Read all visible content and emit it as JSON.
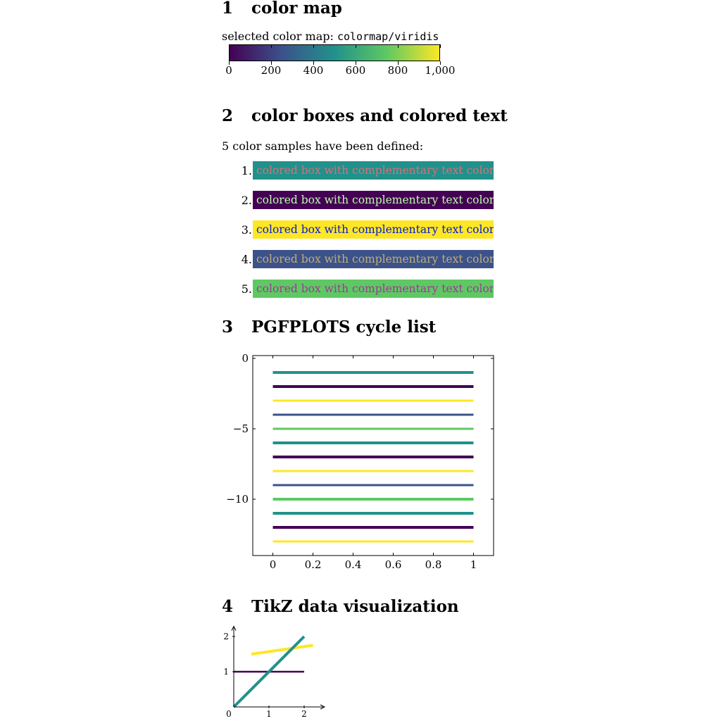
{
  "sections": [
    {
      "number": "1",
      "title": "color map"
    },
    {
      "number": "2",
      "title": "color boxes and colored text"
    },
    {
      "number": "3",
      "title": "PGFPLOTS cycle list"
    },
    {
      "number": "4",
      "title": "TikZ data visualization"
    }
  ],
  "colormap": {
    "label": "selected color map:",
    "name": "colormap/viridis",
    "gradient": [
      "#440154",
      "#3b528b",
      "#21918c",
      "#5ec962",
      "#fde725"
    ],
    "ticks": [
      "0",
      "200",
      "400",
      "600",
      "800",
      "1,000"
    ]
  },
  "samples": {
    "intro": "5 color samples have been defined:",
    "items": [
      {
        "num": "1.",
        "text": "colored box with complementary text color",
        "bg": "#21918c",
        "fg": "#de6e73"
      },
      {
        "num": "2.",
        "text": "colored box with complementary text color",
        "bg": "#440154",
        "fg": "#bbfeab"
      },
      {
        "num": "3.",
        "text": "colored box with complementary text color",
        "bg": "#fde725",
        "fg": "#0218da"
      },
      {
        "num": "4.",
        "text": "colored box with complementary text color",
        "bg": "#3b528b",
        "fg": "#c4ad74"
      },
      {
        "num": "5.",
        "text": "colored box with complementary text color",
        "bg": "#5ec962",
        "fg": "#a1369d"
      }
    ]
  },
  "chart_data": [
    {
      "type": "line",
      "xlim": [
        -0.1,
        1.1
      ],
      "ylim": [
        -14,
        0.2
      ],
      "x_ticks": [
        "0",
        "0.2",
        "0.4",
        "0.6",
        "0.8",
        "1"
      ],
      "y_ticks": [
        "0",
        "−5",
        "−10"
      ],
      "y_tick_values": [
        0,
        -5,
        -10
      ],
      "x_tick_values": [
        0,
        0.2,
        0.4,
        0.6,
        0.8,
        1
      ],
      "series_x": [
        0,
        1
      ],
      "series": [
        {
          "y": -1,
          "color": "#21918c",
          "width": 4
        },
        {
          "y": -2,
          "color": "#440154",
          "width": 4
        },
        {
          "y": -3,
          "color": "#fde725",
          "width": 3
        },
        {
          "y": -4,
          "color": "#3b528b",
          "width": 3
        },
        {
          "y": -5,
          "color": "#5ec962",
          "width": 3
        },
        {
          "y": -6,
          "color": "#21918c",
          "width": 4
        },
        {
          "y": -7,
          "color": "#440154",
          "width": 4
        },
        {
          "y": -8,
          "color": "#fde725",
          "width": 3
        },
        {
          "y": -9,
          "color": "#3b528b",
          "width": 3
        },
        {
          "y": -10,
          "color": "#5ec962",
          "width": 4
        },
        {
          "y": -11,
          "color": "#21918c",
          "width": 4
        },
        {
          "y": -12,
          "color": "#440154",
          "width": 4
        },
        {
          "y": -13,
          "color": "#fde725",
          "width": 3
        }
      ]
    },
    {
      "type": "line",
      "xlim": [
        0,
        2.5
      ],
      "ylim": [
        0,
        2.25
      ],
      "x_ticks": [
        "0",
        "1",
        "2"
      ],
      "y_ticks": [
        "1",
        "2"
      ],
      "series": [
        {
          "points": [
            [
              0,
              1
            ],
            [
              2,
              1
            ]
          ],
          "color": "#440154"
        },
        {
          "points": [
            [
              0.5,
              1.5
            ],
            [
              2.25,
              1.75
            ]
          ],
          "color": "#fde725"
        },
        {
          "points": [
            [
              0,
              0
            ],
            [
              2,
              2
            ]
          ],
          "color": "#21918c"
        }
      ]
    }
  ]
}
